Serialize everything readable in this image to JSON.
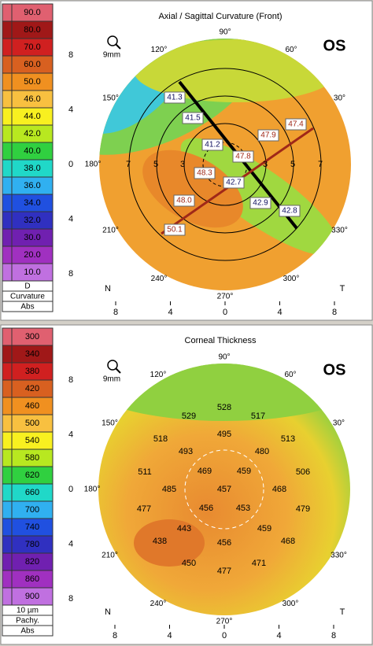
{
  "panels": [
    {
      "title": "Axial / Sagittal Curvature (Front)",
      "scale": {
        "labels": [
          "90.0",
          "80.0",
          "70.0",
          "60.0",
          "50.0",
          "46.0",
          "44.0",
          "42.0",
          "40.0",
          "38.0",
          "36.0",
          "34.0",
          "32.0",
          "30.0",
          "20.0",
          "10.0"
        ],
        "unit": "D",
        "name": "Curvature",
        "mode": "Abs"
      },
      "zoom": "9mm",
      "eye": "OS",
      "x_ticks": [
        "8",
        "4",
        "0",
        "4",
        "8"
      ],
      "y_ticks": [
        "8",
        "4",
        "0",
        "4",
        "8"
      ],
      "angles": [
        "90°",
        "60°",
        "30°",
        "120°",
        "150°",
        "180°",
        "210°",
        "240°",
        "270°",
        "300°",
        "330°"
      ],
      "ring_labels": [
        "7",
        "5",
        "3",
        "3",
        "5",
        "7"
      ],
      "values": [
        "41.3",
        "41.5",
        "41.2",
        "47.8",
        "47.9",
        "47.4",
        "48.3",
        "48.0",
        "50.1",
        "42.7",
        "42.9",
        "42.8"
      ],
      "nasal": "N",
      "temporal": "T"
    },
    {
      "title": "Corneal Thickness",
      "scale": {
        "labels": [
          "300",
          "340",
          "380",
          "420",
          "460",
          "500",
          "540",
          "580",
          "620",
          "660",
          "700",
          "740",
          "780",
          "820",
          "860",
          "900"
        ],
        "unit": "10 µm",
        "name": "Pachy.",
        "mode": "Abs"
      },
      "zoom": "9mm",
      "eye": "OS",
      "x_ticks": [
        "8",
        "4",
        "0",
        "4",
        "8"
      ],
      "y_ticks": [
        "8",
        "4",
        "0",
        "4",
        "8"
      ],
      "angles": [
        "90°",
        "60°",
        "30°",
        "120°",
        "150°",
        "180°",
        "210°",
        "240°",
        "270°",
        "300°",
        "330°"
      ],
      "values": [
        "528",
        "529",
        "517",
        "518",
        "495",
        "513",
        "493",
        "480",
        "511",
        "469",
        "459",
        "506",
        "485",
        "457",
        "468",
        "477",
        "456",
        "453",
        "479",
        "443",
        "459",
        "438",
        "456",
        "468",
        "450",
        "477",
        "471"
      ],
      "nasal": "N",
      "temporal": "T"
    }
  ]
}
